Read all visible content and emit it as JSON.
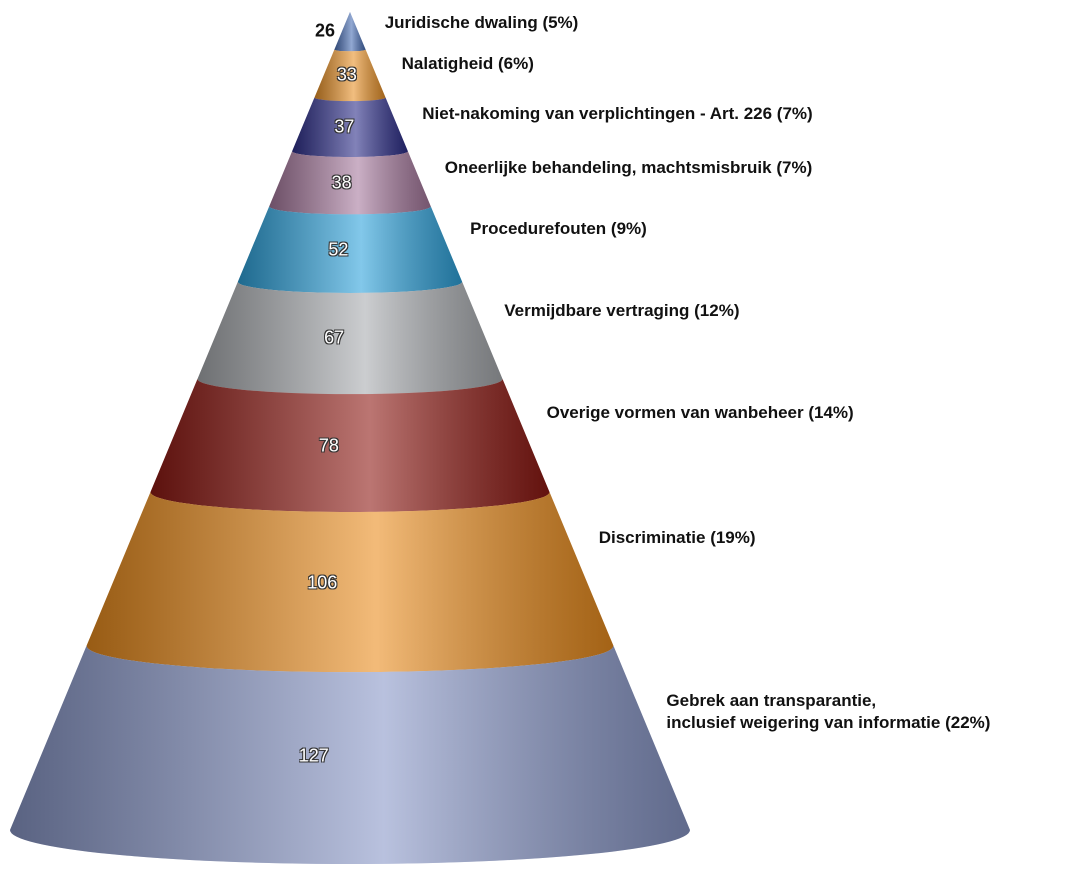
{
  "chart_data": {
    "type": "cone",
    "categories": [
      "Juridische dwaling (5%)",
      "Nalatigheid (6%)",
      "Niet-nakoming van verplichtingen - Art. 226 (7%)",
      "Oneerlijke behandeling, machtsmisbruik (7%)",
      "Procedurefouten (9%)",
      "Vermijdbare vertraging (12%)",
      "Overige vormen van wanbeheer (14%)",
      "Discriminatie (19%)",
      "Gebrek aan transparantie,\ninclusief weigering van informatie (22%)"
    ],
    "values": [
      26,
      33,
      37,
      38,
      52,
      67,
      78,
      106,
      127
    ],
    "colors": [
      "#4a6fb5",
      "#e8922a",
      "#2e2f8a",
      "#a77a9e",
      "#2fa3dc",
      "#a9acb0",
      "#8e1a14",
      "#ea8d1f",
      "#8a98c8"
    ]
  }
}
